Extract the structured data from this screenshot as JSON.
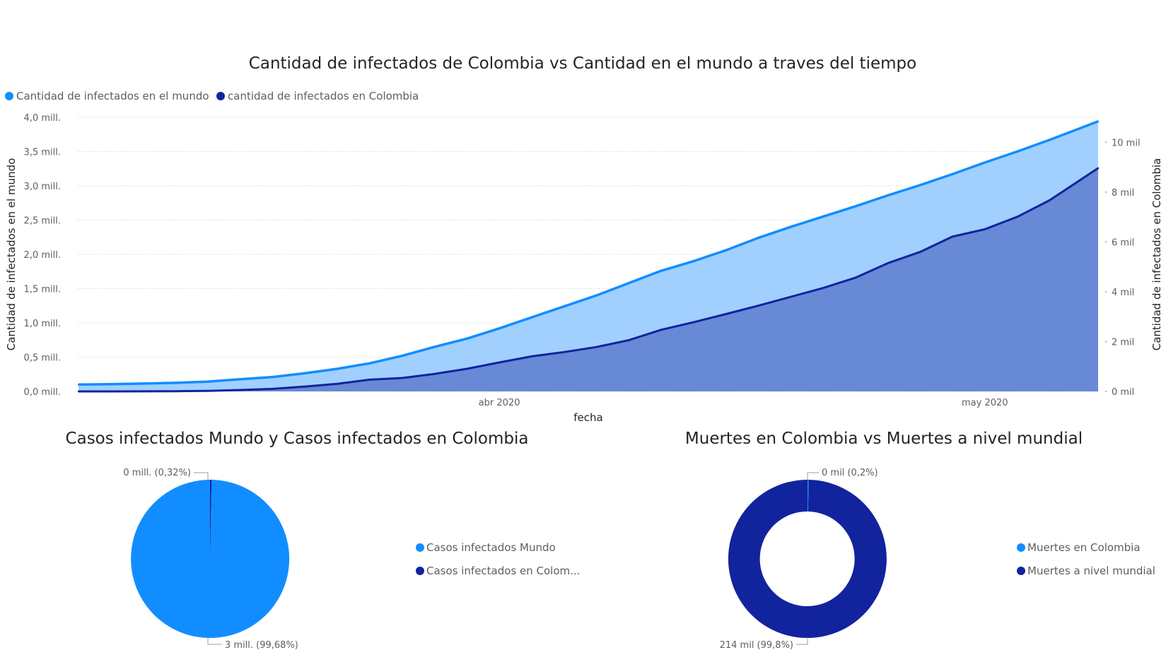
{
  "colors": {
    "world": "#118dff",
    "world_area": "#a1d0ff",
    "colombia": "#12239e",
    "colombia_area": "#6789d6",
    "grid": "#c8c6c4"
  },
  "chart_data": [
    {
      "type": "area",
      "title": "Cantidad de infectados de Colombia vs Cantidad en el mundo a traves del tiempo",
      "xlabel": "fecha",
      "ylabel": "Cantidad de infectados en el mundo",
      "y2label": "Cantidad de infectados en Colombia",
      "legend_position": "top-left",
      "x_ticks": [
        {
          "date": "2020-04-01",
          "label": "abr 2020"
        },
        {
          "date": "2020-05-01",
          "label": "may 2020"
        }
      ],
      "y_ticks": [
        "0,0 mill.",
        "0,5 mill.",
        "1,0 mill.",
        "1,5 mill.",
        "2,0 mill.",
        "2,5 mill.",
        "3,0 mill.",
        "3,5 mill.",
        "4,0 mill."
      ],
      "y2_ticks": [
        "0 mil",
        "2 mil",
        "4 mil",
        "6 mil",
        "8 mil",
        "10 mil"
      ],
      "ylim": [
        0,
        4000000
      ],
      "y2lim": [
        0,
        11000
      ],
      "x_start": "2020-03-06",
      "x_end": "2020-05-08",
      "grid": true,
      "series": [
        {
          "name": "Cantidad de infectados en el mundo",
          "axis": "left",
          "points": [
            [
              "2020-03-06",
              100000
            ],
            [
              "2020-03-08",
              106000
            ],
            [
              "2020-03-10",
              114000
            ],
            [
              "2020-03-12",
              125000
            ],
            [
              "2020-03-14",
              143000
            ],
            [
              "2020-03-16",
              178000
            ],
            [
              "2020-03-18",
              210000
            ],
            [
              "2020-03-20",
              265000
            ],
            [
              "2020-03-22",
              330000
            ],
            [
              "2020-03-24",
              410000
            ],
            [
              "2020-03-26",
              520000
            ],
            [
              "2020-03-28",
              650000
            ],
            [
              "2020-03-30",
              770000
            ],
            [
              "2020-04-01",
              920000
            ],
            [
              "2020-04-03",
              1080000
            ],
            [
              "2020-04-05",
              1240000
            ],
            [
              "2020-04-07",
              1400000
            ],
            [
              "2020-04-09",
              1580000
            ],
            [
              "2020-04-11",
              1760000
            ],
            [
              "2020-04-13",
              1900000
            ],
            [
              "2020-04-15",
              2060000
            ],
            [
              "2020-04-17",
              2240000
            ],
            [
              "2020-04-19",
              2400000
            ],
            [
              "2020-04-21",
              2550000
            ],
            [
              "2020-04-23",
              2700000
            ],
            [
              "2020-04-25",
              2860000
            ],
            [
              "2020-04-27",
              3010000
            ],
            [
              "2020-04-29",
              3170000
            ],
            [
              "2020-05-01",
              3340000
            ],
            [
              "2020-05-03",
              3500000
            ],
            [
              "2020-05-05",
              3670000
            ],
            [
              "2020-05-08",
              3940000
            ]
          ]
        },
        {
          "name": "cantidad de infectados en Colombia",
          "axis": "right",
          "points": [
            [
              "2020-03-06",
              1
            ],
            [
              "2020-03-08",
              1
            ],
            [
              "2020-03-10",
              3
            ],
            [
              "2020-03-12",
              9
            ],
            [
              "2020-03-14",
              24
            ],
            [
              "2020-03-16",
              57
            ],
            [
              "2020-03-18",
              102
            ],
            [
              "2020-03-20",
              196
            ],
            [
              "2020-03-22",
              306
            ],
            [
              "2020-03-24",
              470
            ],
            [
              "2020-03-26",
              539
            ],
            [
              "2020-03-28",
              702
            ],
            [
              "2020-03-30",
              906
            ],
            [
              "2020-04-01",
              1161
            ],
            [
              "2020-04-03",
              1406
            ],
            [
              "2020-04-05",
              1579
            ],
            [
              "2020-04-07",
              1780
            ],
            [
              "2020-04-09",
              2054
            ],
            [
              "2020-04-11",
              2473
            ],
            [
              "2020-04-13",
              2776
            ],
            [
              "2020-04-15",
              3105
            ],
            [
              "2020-04-17",
              3439
            ],
            [
              "2020-04-19",
              3792
            ],
            [
              "2020-04-21",
              4149
            ],
            [
              "2020-04-23",
              4561
            ],
            [
              "2020-04-25",
              5142
            ],
            [
              "2020-04-27",
              5597
            ],
            [
              "2020-04-29",
              6211
            ],
            [
              "2020-05-01",
              6507
            ],
            [
              "2020-05-03",
              7006
            ],
            [
              "2020-05-05",
              7668
            ],
            [
              "2020-05-08",
              8959
            ]
          ]
        }
      ]
    },
    {
      "type": "pie",
      "title": "Casos infectados Mundo y Casos infectados en Colombia",
      "slices": [
        {
          "name": "Casos infectados Mundo",
          "percent": 99.68,
          "label": "3 mill. (99,68%)"
        },
        {
          "name": "Casos infectados en Colom...",
          "percent": 0.32,
          "label": "0 mill. (0,32%)"
        }
      ]
    },
    {
      "type": "pie",
      "variant": "donut",
      "title": "Muertes en Colombia vs Muertes a nivel mundial",
      "slices": [
        {
          "name": "Muertes en Colombia",
          "percent": 0.2,
          "label": "0 mil (0,2%)"
        },
        {
          "name": "Muertes a nivel mundial",
          "percent": 99.8,
          "label": "214 mil (99,8%)"
        }
      ]
    }
  ]
}
